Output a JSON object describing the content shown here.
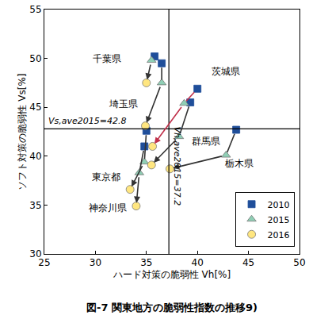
{
  "chart_data": {
    "type": "scatter",
    "title": "図-7 関東地方の脆弱性指数の推移9)",
    "x_label": "ハード対策の脆弱性 Vh[%]",
    "y_label": "ソフト対策の脆弱性 Vs[%]",
    "categories": [
      "千葉県",
      "埼玉県",
      "東京都",
      "神奈川県",
      "茨城県",
      "群馬県",
      "栃木県"
    ],
    "colors": [
      "#333333",
      "#333333",
      "#333333",
      "#333333",
      "#c0304a",
      "#333333",
      "#333333"
    ],
    "series": [
      {
        "name": "2010",
        "color": "#1f4e9a",
        "marker": "square",
        "x": [
          35.8,
          36.5,
          35.0,
          34.8,
          40.0,
          39.3,
          43.8
        ],
        "y": [
          50.2,
          49.5,
          42.6,
          41.0,
          46.9,
          45.5,
          42.7
        ]
      },
      {
        "name": "2015",
        "color": "#8fcfb5",
        "marker": "triangle-up",
        "x": [
          35.5,
          36.5,
          34.8,
          34.3,
          38.7,
          38.2,
          42.8
        ],
        "y": [
          49.8,
          47.5,
          39.4,
          38.3,
          45.4,
          42.0,
          40.1
        ]
      },
      {
        "name": "2016",
        "color": "#ffe680",
        "marker": "circle",
        "x": [
          35.0,
          34.9,
          33.4,
          34.0,
          35.6,
          35.5,
          37.3
        ],
        "y": [
          47.5,
          43.1,
          36.6,
          34.9,
          41.0,
          39.1,
          38.7
        ]
      }
    ],
    "reference_lines": [
      {
        "axis": "y",
        "value": 42.8,
        "label": "Vs,ave2015=42.8"
      },
      {
        "axis": "x",
        "value": 37.2,
        "label": "Vh,ave2015=37.2"
      }
    ],
    "xlim": [
      25,
      50
    ],
    "xticks": [
      25,
      30,
      35,
      40,
      45,
      50
    ],
    "ylim": [
      30,
      55
    ],
    "yticks": [
      30,
      35,
      40,
      45,
      50,
      55
    ],
    "grid": false,
    "legend": "lower right"
  }
}
